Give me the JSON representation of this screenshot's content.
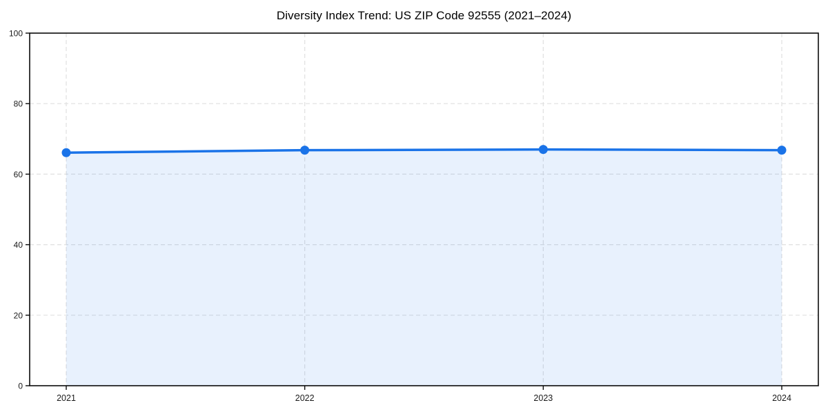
{
  "chart_data": {
    "type": "area",
    "title": "Diversity Index Trend: US ZIP Code 92555 (2021–2024)",
    "x": [
      "2021",
      "2022",
      "2023",
      "2024"
    ],
    "series": [
      {
        "name": "Diversity Index",
        "values": [
          66.1,
          66.8,
          67.0,
          66.8
        ]
      }
    ],
    "xlabel": "",
    "ylabel": "",
    "ylim": [
      0,
      100
    ],
    "yticks": [
      0,
      20,
      40,
      60,
      80,
      100
    ],
    "grid": true,
    "grid_line_style": "dashed",
    "legend_position": "none",
    "colors": {
      "line": "#1a73e8",
      "marker": "#1a73e8",
      "fill": "rgba(26,115,232,0.10)",
      "grid": "#e0e0e0",
      "spine": "#0a0a0a",
      "tick_label": "#1a1a1a",
      "title": "#000000"
    }
  }
}
